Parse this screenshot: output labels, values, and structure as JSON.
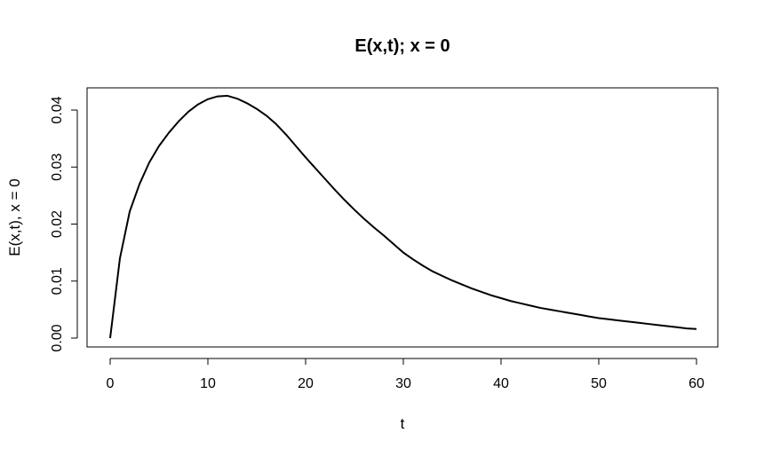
{
  "chart_data": {
    "type": "line",
    "title": "E(x,t); x = 0",
    "xlabel": "t",
    "ylabel": "E(x,t), x = 0",
    "xlim": [
      0,
      60
    ],
    "ylim": [
      0,
      0.04
    ],
    "x_ticks": [
      0,
      10,
      20,
      30,
      40,
      50,
      60
    ],
    "y_ticks": [
      0.0,
      0.01,
      0.02,
      0.03,
      0.04
    ],
    "x_tick_labels": [
      "0",
      "10",
      "20",
      "30",
      "40",
      "50",
      "60"
    ],
    "y_tick_labels": [
      "0.00",
      "0.01",
      "0.02",
      "0.03",
      "0.04"
    ],
    "grid": false,
    "line_color": "#000000",
    "series": [
      {
        "x": [
          0,
          1,
          2,
          3,
          4,
          5,
          6,
          7,
          8,
          9,
          10,
          11,
          12,
          13,
          14,
          15,
          16,
          17,
          18,
          19,
          20,
          21,
          22,
          23,
          24,
          25,
          26,
          27,
          28,
          29,
          30,
          31,
          32,
          33,
          34,
          35,
          36,
          37,
          38,
          39,
          40,
          41,
          42,
          43,
          44,
          45,
          46,
          47,
          48,
          49,
          50,
          51,
          52,
          53,
          54,
          55,
          56,
          57,
          58,
          59,
          60
        ],
        "y": [
          0.0,
          0.014,
          0.0222,
          0.027,
          0.0308,
          0.0337,
          0.036,
          0.038,
          0.0397,
          0.041,
          0.0419,
          0.0424,
          0.0425,
          0.042,
          0.0412,
          0.0402,
          0.039,
          0.0375,
          0.0357,
          0.0337,
          0.0317,
          0.0298,
          0.0279,
          0.026,
          0.0242,
          0.0225,
          0.0209,
          0.0194,
          0.018,
          0.0165,
          0.015,
          0.0138,
          0.0127,
          0.0117,
          0.0109,
          0.0101,
          0.0094,
          0.0087,
          0.0081,
          0.0075,
          0.007,
          0.0065,
          0.0061,
          0.0057,
          0.0053,
          0.005,
          0.0047,
          0.0044,
          0.0041,
          0.0038,
          0.0035,
          0.0033,
          0.0031,
          0.0029,
          0.0027,
          0.0025,
          0.0023,
          0.0021,
          0.0019,
          0.0017,
          0.0016
        ]
      }
    ]
  }
}
